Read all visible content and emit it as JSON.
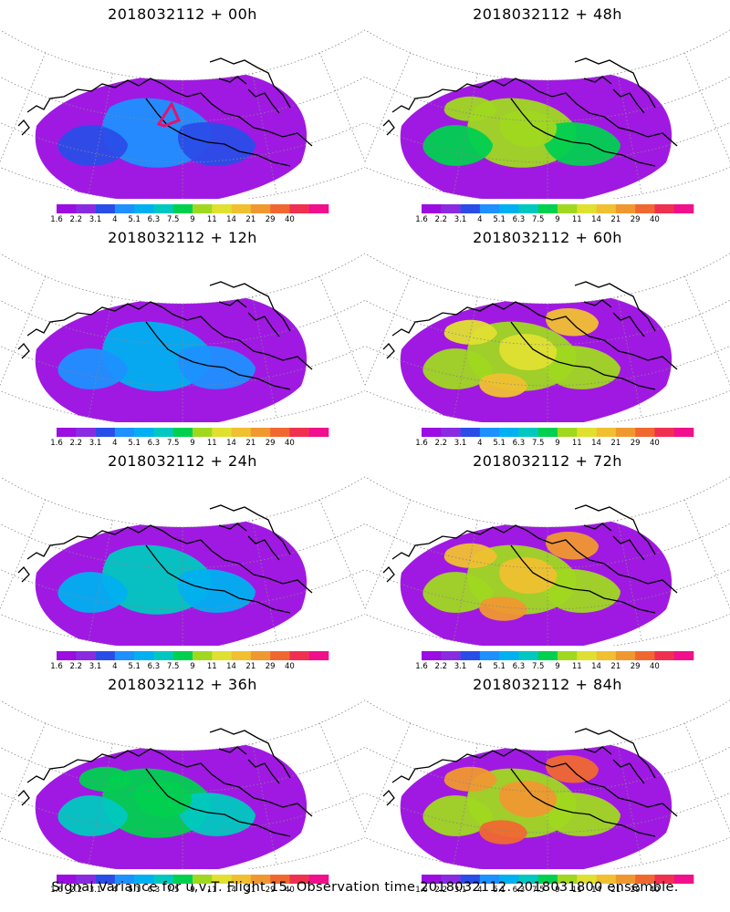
{
  "panels": [
    {
      "title": "2018032112 + 00h",
      "lead_hours": 0
    },
    {
      "title": "2018032112 + 48h",
      "lead_hours": 48
    },
    {
      "title": "2018032112 + 12h",
      "lead_hours": 12
    },
    {
      "title": "2018032112 + 60h",
      "lead_hours": 60
    },
    {
      "title": "2018032112 + 24h",
      "lead_hours": 24
    },
    {
      "title": "2018032112 + 72h",
      "lead_hours": 72
    },
    {
      "title": "2018032112 + 36h",
      "lead_hours": 36
    },
    {
      "title": "2018032112 + 84h",
      "lead_hours": 84
    }
  ],
  "colorbar": {
    "labels": [
      "1.6",
      "2.2",
      "3.1",
      "4",
      "5.1",
      "6.3",
      "7.5",
      "9",
      "11",
      "14",
      "21",
      "29",
      "40"
    ],
    "colors": [
      "#9b0de0",
      "#8a2be2",
      "#2a4de8",
      "#1e90ff",
      "#00b0f0",
      "#00c8c0",
      "#00d050",
      "#a0d820",
      "#e0e030",
      "#f0c030",
      "#f09830",
      "#f06830",
      "#f03050",
      "#f0108c"
    ]
  },
  "footer": "Signal Variance for u,v,T. Flight 15. Observation time 2018032112. 2018031800 ensemble.",
  "colors": {
    "coast": "#000000",
    "grid": "#888888",
    "flight_track": "#e8106e"
  }
}
